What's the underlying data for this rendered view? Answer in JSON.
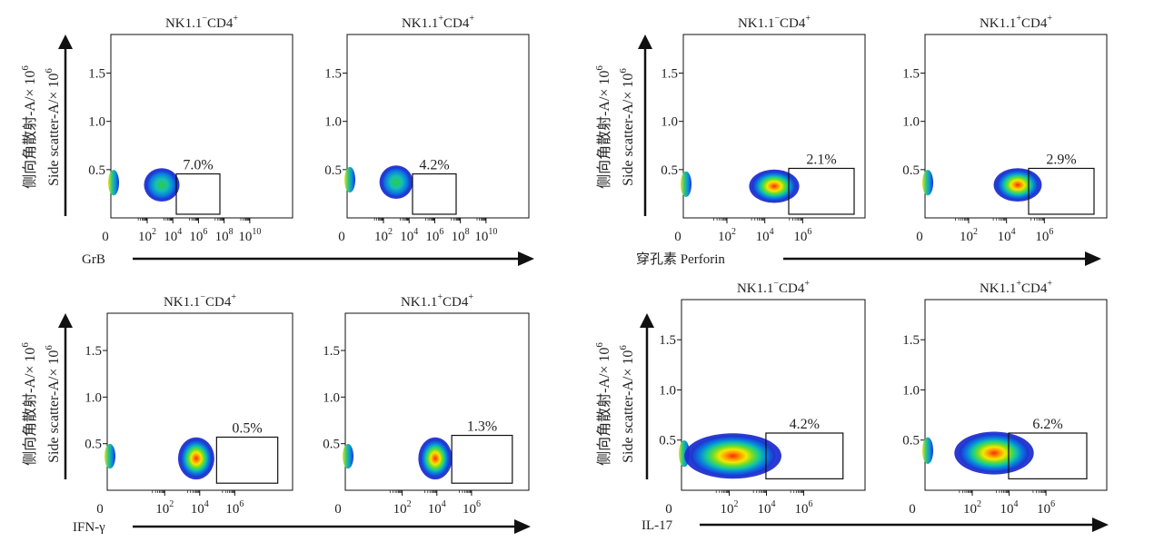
{
  "figure": {
    "ylabel_cn": "侧向角散射-A/× 10",
    "ylabel_en": "Side  scatter-A/× 10",
    "ylabel_exp": "6"
  },
  "chart_data": [
    {
      "type": "scatter",
      "group": "GrB",
      "xlabel": "GrB",
      "xlabel_cn": "",
      "ylim": [
        0,
        1.9
      ],
      "yticks": [
        "0.5",
        "1.0",
        "1.5"
      ],
      "xticks": [
        "0",
        "10^2",
        "10^4",
        "10^6",
        "10^8",
        "10^10"
      ],
      "panels": [
        {
          "title_main": "NK1.1",
          "title_sup1": "−",
          "title_cd": "CD4",
          "title_sup2": "+",
          "gate_percent": "7.0%"
        },
        {
          "title_main": "NK1.1",
          "title_sup1": "+",
          "title_cd": "CD4",
          "title_sup2": "+",
          "gate_percent": "4.2%"
        }
      ]
    },
    {
      "type": "scatter",
      "group": "Perforin",
      "xlabel": "Perforin",
      "xlabel_cn": "穿孔素",
      "ylim": [
        0,
        1.9
      ],
      "yticks": [
        "0.5",
        "1.0",
        "1.5"
      ],
      "xticks": [
        "0",
        "10^2",
        "10^4",
        "10^6"
      ],
      "panels": [
        {
          "title_main": "NK1.1",
          "title_sup1": "−",
          "title_cd": "CD4",
          "title_sup2": "+",
          "gate_percent": "2.1%"
        },
        {
          "title_main": "NK1.1",
          "title_sup1": "+",
          "title_cd": "CD4",
          "title_sup2": "+",
          "gate_percent": "2.9%"
        }
      ]
    },
    {
      "type": "scatter",
      "group": "IFN-γ",
      "xlabel": "IFN-γ",
      "xlabel_cn": "",
      "ylim": [
        0,
        1.9
      ],
      "yticks": [
        "0.5",
        "1.0",
        "1.5"
      ],
      "xticks": [
        "0",
        "10^2",
        "10^4",
        "10^6"
      ],
      "panels": [
        {
          "title_main": "NK1.1",
          "title_sup1": "−",
          "title_cd": "CD4",
          "title_sup2": "+",
          "gate_percent": "0.5%"
        },
        {
          "title_main": "NK1.1",
          "title_sup1": "+",
          "title_cd": "CD4",
          "title_sup2": "+",
          "gate_percent": "1.3%"
        }
      ]
    },
    {
      "type": "scatter",
      "group": "IL-17",
      "xlabel": "IL-17",
      "xlabel_cn": "",
      "ylim": [
        0,
        1.9
      ],
      "yticks": [
        "0.5",
        "1.0",
        "1.5"
      ],
      "xticks": [
        "0",
        "10^2",
        "10^4",
        "10^6"
      ],
      "panels": [
        {
          "title_main": "NK1.1",
          "title_sup1": "−",
          "title_cd": "CD4",
          "title_sup2": "+",
          "gate_percent": "4.2%"
        },
        {
          "title_main": "NK1.1",
          "title_sup1": "+",
          "title_cd": "CD4",
          "title_sup2": "+",
          "gate_percent": "6.2%"
        }
      ]
    }
  ]
}
